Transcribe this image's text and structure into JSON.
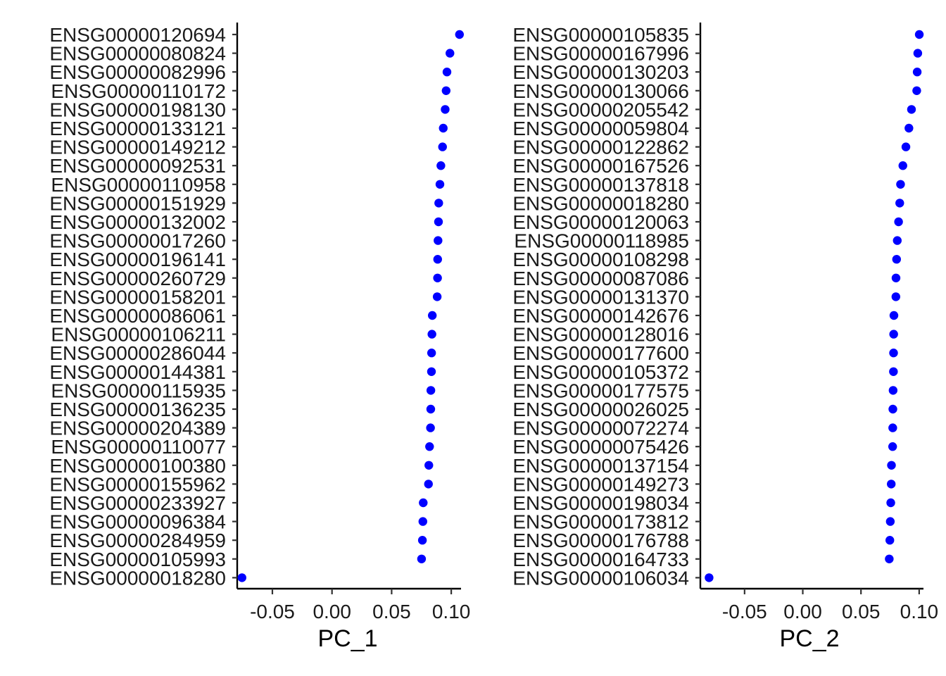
{
  "chart_data": [
    {
      "type": "scatter",
      "xlabel": "PC_1",
      "xlim": [
        -0.0795,
        0.1082
      ],
      "xticks": [
        -0.05,
        0.0,
        0.05,
        0.1
      ],
      "xtick_labels": [
        "-0.05",
        "0.00",
        "0.05",
        "0.10"
      ],
      "point_color": "#0000ff",
      "genes": [
        "ENSG00000120694",
        "ENSG00000080824",
        "ENSG00000082996",
        "ENSG00000110172",
        "ENSG00000198130",
        "ENSG00000133121",
        "ENSG00000149212",
        "ENSG00000092531",
        "ENSG00000110958",
        "ENSG00000151929",
        "ENSG00000132002",
        "ENSG00000017260",
        "ENSG00000196141",
        "ENSG00000260729",
        "ENSG00000158201",
        "ENSG00000086061",
        "ENSG00000106211",
        "ENSG00000286044",
        "ENSG00000144381",
        "ENSG00000115935",
        "ENSG00000136235",
        "ENSG00000204389",
        "ENSG00000110077",
        "ENSG00000100380",
        "ENSG00000155962",
        "ENSG00000233927",
        "ENSG00000096384",
        "ENSG00000284959",
        "ENSG00000105993",
        "ENSG00000018280"
      ],
      "values": [
        0.1069,
        0.0989,
        0.0964,
        0.0957,
        0.0949,
        0.0933,
        0.0927,
        0.0913,
        0.0905,
        0.0895,
        0.0893,
        0.0889,
        0.0886,
        0.0885,
        0.0882,
        0.0841,
        0.0838,
        0.0835,
        0.0834,
        0.0829,
        0.0828,
        0.0826,
        0.0818,
        0.0812,
        0.0809,
        0.0765,
        0.0762,
        0.0758,
        0.0751,
        -0.0755
      ]
    },
    {
      "type": "scatter",
      "xlabel": "PC_2",
      "xlim": [
        -0.088,
        0.1037
      ],
      "xticks": [
        -0.05,
        0.0,
        0.05,
        0.1
      ],
      "xtick_labels": [
        "-0.05",
        "0.00",
        "0.05",
        "0.10"
      ],
      "point_color": "#0000ff",
      "genes": [
        "ENSG00000105835",
        "ENSG00000167996",
        "ENSG00000130203",
        "ENSG00000130066",
        "ENSG00000205542",
        "ENSG00000059804",
        "ENSG00000122862",
        "ENSG00000167526",
        "ENSG00000137818",
        "ENSG00000018280",
        "ENSG00000120063",
        "ENSG00000118985",
        "ENSG00000108298",
        "ENSG00000087086",
        "ENSG00000131370",
        "ENSG00000142676",
        "ENSG00000128016",
        "ENSG00000177600",
        "ENSG00000105372",
        "ENSG00000177575",
        "ENSG00000026025",
        "ENSG00000072274",
        "ENSG00000075426",
        "ENSG00000137154",
        "ENSG00000149273",
        "ENSG00000198034",
        "ENSG00000173812",
        "ENSG00000176788",
        "ENSG00000164733",
        "ENSG00000106034"
      ],
      "values": [
        0.1001,
        0.0988,
        0.0983,
        0.0979,
        0.0934,
        0.0912,
        0.0886,
        0.086,
        0.084,
        0.0833,
        0.0823,
        0.0812,
        0.0806,
        0.0801,
        0.08,
        0.0783,
        0.0781,
        0.078,
        0.0779,
        0.0776,
        0.0774,
        0.0773,
        0.0772,
        0.0762,
        0.076,
        0.0756,
        0.0752,
        0.0748,
        0.0743,
        -0.0805
      ]
    }
  ]
}
